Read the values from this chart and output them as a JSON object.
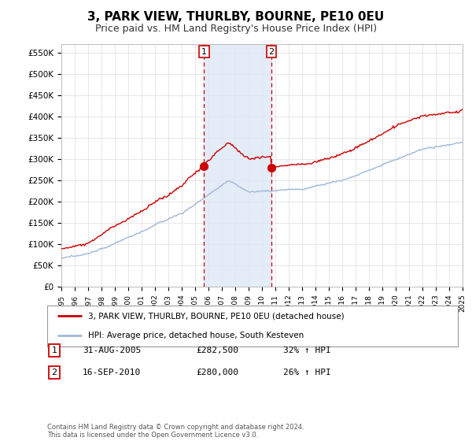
{
  "title": "3, PARK VIEW, THURLBY, BOURNE, PE10 0EU",
  "subtitle": "Price paid vs. HM Land Registry's House Price Index (HPI)",
  "title_fontsize": 11,
  "subtitle_fontsize": 9,
  "background_color": "#ffffff",
  "plot_bg_color": "#ffffff",
  "grid_color": "#dddddd",
  "red_color": "#cc0000",
  "blue_color": "#a0b8d8",
  "yticks": [
    0,
    50000,
    100000,
    150000,
    200000,
    250000,
    300000,
    350000,
    400000,
    450000,
    500000,
    550000
  ],
  "ytick_labels": [
    "£0",
    "£50K",
    "£100K",
    "£150K",
    "£200K",
    "£250K",
    "£300K",
    "£350K",
    "£400K",
    "£450K",
    "£500K",
    "£550K"
  ],
  "xmin": 1995,
  "xmax": 2025,
  "ymin": 0,
  "ymax": 570000,
  "legend_label_red": "3, PARK VIEW, THURLBY, BOURNE, PE10 0EU (detached house)",
  "legend_label_blue": "HPI: Average price, detached house, South Kesteven",
  "transaction1_label": "1",
  "transaction1_date": "31-AUG-2005",
  "transaction1_price": "£282,500",
  "transaction1_hpi": "32% ↑ HPI",
  "transaction1_x": 2005.67,
  "transaction1_y": 282500,
  "transaction2_label": "2",
  "transaction2_date": "16-SEP-2010",
  "transaction2_price": "£280,000",
  "transaction2_hpi": "26% ↑ HPI",
  "transaction2_x": 2010.71,
  "transaction2_y": 280000,
  "footer": "Contains HM Land Registry data © Crown copyright and database right 2024.\nThis data is licensed under the Open Government Licence v3.0.",
  "highlight_x1": 2005.67,
  "highlight_x2": 2010.71,
  "highlight_color": "#dce8f5",
  "highlight_alpha": 0.8
}
